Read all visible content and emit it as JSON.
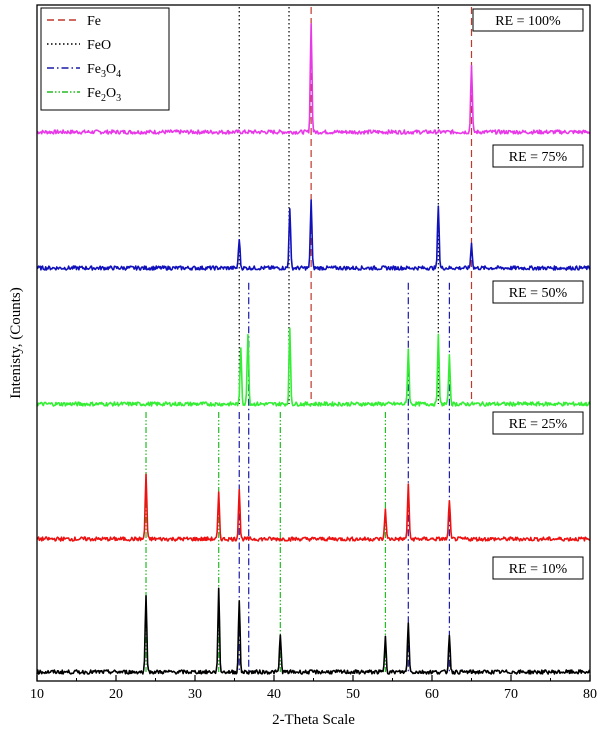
{
  "chart_data": {
    "type": "line",
    "xlabel": "2-Theta Scale",
    "ylabel": "Intenisty, (Counts)",
    "xlim": [
      10,
      80
    ],
    "x_ticks": [
      10,
      20,
      30,
      40,
      50,
      60,
      70,
      80
    ],
    "y_ticks_shown": false,
    "grid": false,
    "legend": {
      "position": "top-left",
      "entries": [
        {
          "label": "Fe",
          "formula": [
            [
              "Fe",
              false
            ]
          ],
          "color": "#c0392b",
          "style": "dashed"
        },
        {
          "label": "FeO",
          "formula": [
            [
              "FeO",
              false
            ]
          ],
          "color": "#000000",
          "style": "dotted"
        },
        {
          "label": "Fe3O4",
          "formula": [
            [
              "Fe",
              false
            ],
            [
              "3",
              true
            ],
            [
              "O",
              false
            ],
            [
              "4",
              true
            ]
          ],
          "color": "#1a1aa6",
          "style": "dashdot"
        },
        {
          "label": "Fe2O3",
          "formula": [
            [
              "Fe",
              false
            ],
            [
              "2",
              true
            ],
            [
              "O",
              false
            ],
            [
              "3",
              true
            ]
          ],
          "color": "#22bb22",
          "style": "dashdotdot"
        }
      ]
    },
    "series": [
      {
        "name": "RE = 100%",
        "color": "#e838e8",
        "peaks": [
          [
            44.7,
            1.0
          ],
          [
            65.0,
            0.62
          ]
        ]
      },
      {
        "name": "RE = 75%",
        "color": "#1111bb",
        "peaks": [
          [
            35.6,
            0.27
          ],
          [
            42.0,
            0.55
          ],
          [
            44.7,
            0.62
          ],
          [
            60.8,
            0.58
          ],
          [
            65.0,
            0.22
          ]
        ]
      },
      {
        "name": "RE = 50%",
        "color": "#33ee33",
        "peaks": [
          [
            35.8,
            0.6
          ],
          [
            36.7,
            0.75
          ],
          [
            42.0,
            0.78
          ],
          [
            57.0,
            0.58
          ],
          [
            60.8,
            0.72
          ],
          [
            62.2,
            0.5
          ]
        ]
      },
      {
        "name": "RE = 25%",
        "color": "#ee1111",
        "peaks": [
          [
            23.8,
            0.65
          ],
          [
            33.0,
            0.45
          ],
          [
            35.6,
            0.5
          ],
          [
            54.1,
            0.3
          ],
          [
            57.0,
            0.55
          ],
          [
            62.2,
            0.4
          ]
        ]
      },
      {
        "name": "RE = 10%",
        "color": "#000000",
        "peaks": [
          [
            23.8,
            0.78
          ],
          [
            33.0,
            0.82
          ],
          [
            35.6,
            0.72
          ],
          [
            40.8,
            0.38
          ],
          [
            54.1,
            0.36
          ],
          [
            57.0,
            0.5
          ],
          [
            62.2,
            0.38
          ]
        ]
      }
    ],
    "reference_lines": [
      {
        "phase": "Fe",
        "x": 44.7,
        "from_series": 0,
        "to_series": 2
      },
      {
        "phase": "Fe",
        "x": 65.0,
        "from_series": 0,
        "to_series": 2
      },
      {
        "phase": "FeO",
        "x": 35.6,
        "from_series": 0,
        "to_series": 2
      },
      {
        "phase": "FeO",
        "x": 41.9,
        "from_series": 0,
        "to_series": 2
      },
      {
        "phase": "FeO",
        "x": 60.8,
        "from_series": 0,
        "to_series": 2
      },
      {
        "phase": "Fe3O4",
        "x": 36.8,
        "from_series": 2,
        "to_series": 4
      },
      {
        "phase": "Fe3O4",
        "x": 35.6,
        "from_series": 3,
        "to_series": 4
      },
      {
        "phase": "Fe3O4",
        "x": 57.0,
        "from_series": 2,
        "to_series": 4
      },
      {
        "phase": "Fe3O4",
        "x": 62.2,
        "from_series": 2,
        "to_series": 4
      },
      {
        "phase": "Fe2O3",
        "x": 23.8,
        "from_series": 3,
        "to_series": 4
      },
      {
        "phase": "Fe2O3",
        "x": 33.0,
        "from_series": 3,
        "to_series": 4
      },
      {
        "phase": "Fe2O3",
        "x": 40.8,
        "from_series": 3,
        "to_series": 4
      },
      {
        "phase": "Fe2O3",
        "x": 54.1,
        "from_series": 3,
        "to_series": 4
      }
    ]
  }
}
